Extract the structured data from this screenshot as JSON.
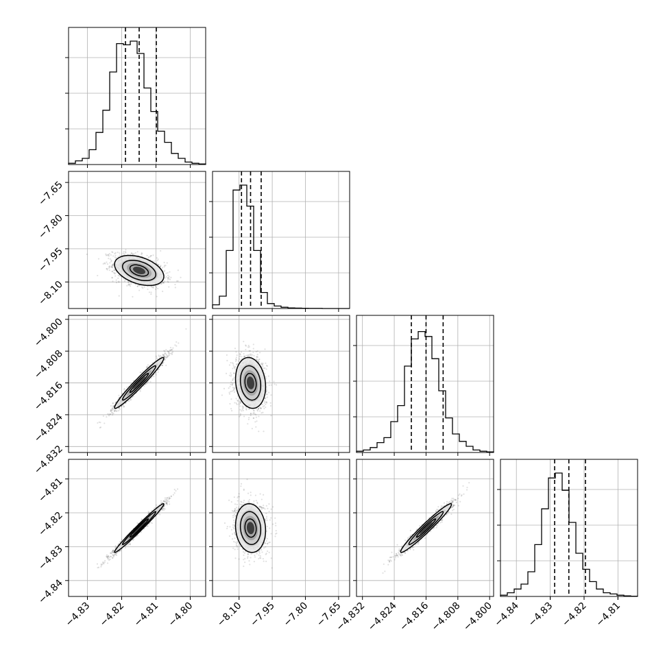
{
  "chart_data": {
    "type": "corner",
    "grid": true,
    "parameters": [
      {
        "range": [
          -4.8355,
          -4.7955
        ],
        "ticks": [
          -4.83,
          -4.82,
          -4.81,
          -4.8
        ],
        "tick_labels": [
          "−4.83",
          "−4.82",
          "−4.81",
          "−4.80"
        ],
        "quantiles": [
          -4.8189,
          -4.8149,
          -4.8099
        ],
        "histogram": [
          0.01,
          0.03,
          0.05,
          0.12,
          0.26,
          0.44,
          0.75,
          0.98,
          0.97,
          1.0,
          0.9,
          0.62,
          0.43,
          0.27,
          0.18,
          0.09,
          0.05,
          0.02,
          0.01,
          0.005
        ]
      },
      {
        "range": [
          -8.22,
          -7.6
        ],
        "ticks": [
          -8.1,
          -7.95,
          -7.8,
          -7.65
        ],
        "tick_labels": [
          "−8.10",
          "−7.95",
          "−7.80",
          "−7.65"
        ],
        "quantiles": [
          -8.089,
          -8.048,
          -8.0
        ],
        "histogram": [
          0.03,
          0.1,
          0.47,
          0.96,
          1.0,
          0.83,
          0.47,
          0.13,
          0.04,
          0.02,
          0.01,
          0.005,
          0.003,
          0.002,
          0.001,
          0.001,
          0.0,
          0.0,
          0.0,
          0.0
        ]
      },
      {
        "range": [
          -4.8335,
          -4.799
        ],
        "ticks": [
          -4.832,
          -4.824,
          -4.816,
          -4.808,
          -4.8
        ],
        "tick_labels": [
          "−4.832",
          "−4.824",
          "−4.816",
          "−4.808",
          "−4.800"
        ],
        "quantiles": [
          -4.8197,
          -4.816,
          -4.8117
        ],
        "histogram": [
          0.01,
          0.02,
          0.04,
          0.08,
          0.12,
          0.25,
          0.38,
          0.7,
          0.92,
          0.98,
          0.94,
          0.76,
          0.5,
          0.28,
          0.15,
          0.09,
          0.05,
          0.02,
          0.01,
          0.005
        ]
      },
      {
        "range": [
          -4.8447,
          -4.8042
        ],
        "ticks": [
          -4.84,
          -4.83,
          -4.82,
          -4.81
        ],
        "tick_labels": [
          "−4.84",
          "−4.83",
          "−4.82",
          "−4.81"
        ],
        "quantiles": [
          -4.8287,
          -4.8245,
          -4.8196
        ],
        "histogram": [
          0.01,
          0.03,
          0.06,
          0.1,
          0.2,
          0.42,
          0.71,
          0.96,
          1.0,
          0.86,
          0.6,
          0.35,
          0.22,
          0.12,
          0.06,
          0.03,
          0.02,
          0.01,
          0.005,
          0.002
        ]
      }
    ],
    "pairs": [
      {
        "x": 0,
        "y": 1,
        "center": [
          -4.8149,
          -8.048
        ],
        "sigma": [
          0.0036,
          0.034
        ],
        "rho": -0.4
      },
      {
        "x": 0,
        "y": 2,
        "center": [
          -4.8149,
          -4.816
        ],
        "sigma": [
          0.0036,
          0.0032
        ],
        "rho": 0.97
      },
      {
        "x": 1,
        "y": 2,
        "center": [
          -8.048,
          -4.816
        ],
        "sigma": [
          0.034,
          0.0032
        ],
        "rho": -0.15
      },
      {
        "x": 0,
        "y": 3,
        "center": [
          -4.8149,
          -4.8245
        ],
        "sigma": [
          0.0036,
          0.0036
        ],
        "rho": 0.985
      },
      {
        "x": 1,
        "y": 3,
        "center": [
          -8.048,
          -4.8245
        ],
        "sigma": [
          0.034,
          0.0036
        ],
        "rho": -0.1
      },
      {
        "x": 2,
        "y": 3,
        "center": [
          -4.816,
          -4.8245
        ],
        "sigma": [
          0.0032,
          0.0036
        ],
        "rho": 0.97
      }
    ]
  }
}
